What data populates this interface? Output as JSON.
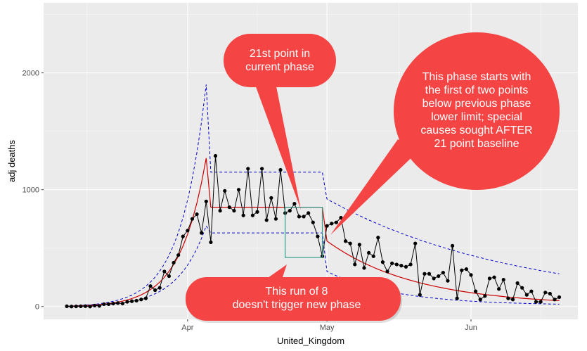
{
  "chart_data": {
    "type": "line",
    "xlabel": "United_Kingdom",
    "ylabel": "adj deaths",
    "x_range": [
      "2020-03-01",
      "2020-06-24"
    ],
    "ylim": [
      -110,
      2600
    ],
    "y_ticks": [
      0,
      1000,
      2000
    ],
    "x_ticks": [
      {
        "date": "2020-04-01",
        "label": "Apr"
      },
      {
        "date": "2020-05-01",
        "label": "May"
      },
      {
        "date": "2020-06-01",
        "label": "Jun"
      }
    ],
    "grid": true,
    "background": "#EBEBEB",
    "colors": {
      "data": "#000000",
      "center": "#CC0000",
      "limits": "#0000CC",
      "highlight": "#2E9E8A",
      "callout": "#F44444"
    },
    "start_date": "2020-03-06",
    "series": [
      {
        "style": "points-and-line",
        "values": [
          2,
          0,
          1,
          2,
          3,
          0,
          8,
          5,
          20,
          20,
          25,
          30,
          25,
          40,
          45,
          50,
          60,
          70,
          175,
          140,
          160,
          300,
          260,
          375,
          440,
          600,
          650,
          750,
          790,
          630,
          900,
          550,
          1290,
          820,
          990,
          850,
          820,
          1000,
          780,
          1180,
          780,
          810,
          1180,
          740,
          930,
          750,
          1170,
          800,
          820,
          880,
          770,
          770,
          800,
          720,
          600,
          430,
          690,
          710,
          720,
          760,
          560,
          540,
          360,
          530,
          330,
          460,
          430,
          590,
          380,
          300,
          370,
          360,
          350,
          340,
          360,
          540,
          100,
          280,
          280,
          240,
          260,
          290,
          220,
          520,
          70,
          310,
          320,
          270,
          130,
          60,
          90,
          240,
          250,
          150,
          230,
          70,
          60,
          200,
          160,
          100,
          130,
          40,
          40,
          120,
          110,
          60,
          80
        ]
      },
      {
        "name": "center",
        "phases": [
          {
            "start": "2020-03-06",
            "end": "2020-04-05",
            "style": "exponential",
            "from": 1,
            "to": 1270
          },
          {
            "start": "2020-04-06",
            "end": "2020-04-30",
            "style": "flat",
            "value": 850
          },
          {
            "start": "2020-05-01",
            "end": "2020-06-20",
            "style": "decay",
            "from": 560,
            "to": 50
          }
        ]
      },
      {
        "name": "limits",
        "upper": [
          {
            "start": "2020-03-06",
            "end": "2020-04-05",
            "style": "exponential",
            "from": 3,
            "to": 1900
          },
          {
            "start": "2020-04-06",
            "end": "2020-04-30",
            "style": "flat",
            "value": 1150
          },
          {
            "start": "2020-05-01",
            "end": "2020-06-20",
            "style": "decay",
            "from": 920,
            "to": 280
          }
        ],
        "lower": [
          {
            "start": "2020-03-06",
            "end": "2020-04-05",
            "style": "exponential",
            "from": 0,
            "to": 690
          },
          {
            "start": "2020-04-06",
            "end": "2020-04-30",
            "style": "flat",
            "value": 630
          },
          {
            "start": "2020-05-01",
            "end": "2020-06-20",
            "style": "decay",
            "from": 300,
            "to": 20
          }
        ]
      }
    ],
    "highlight_box": {
      "x": [
        "2020-04-22",
        "2020-04-30"
      ],
      "y": [
        420,
        850
      ]
    },
    "annotations": [
      "21st point in\ncurrent phase",
      "This phase starts with\nthe first of two points\nbelow previous phase\nlower limit; special\ncauses sought AFTER\n21 point baseline",
      "This run of 8\ndoesn't trigger new phase"
    ]
  }
}
